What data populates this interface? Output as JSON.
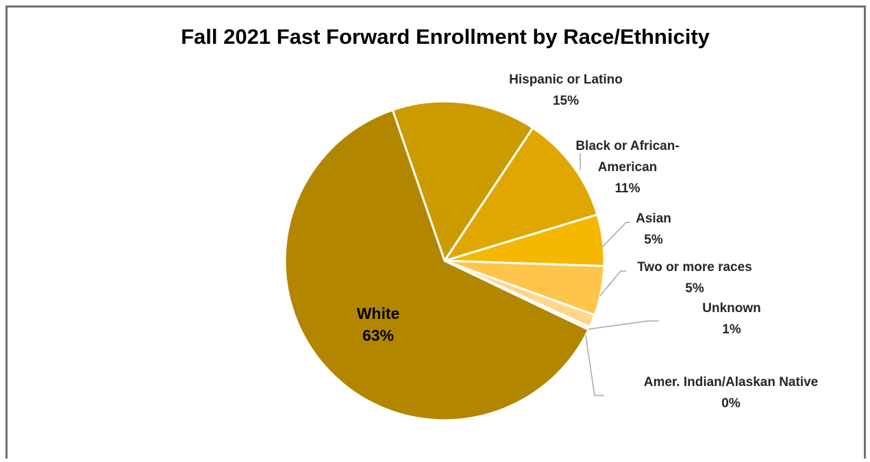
{
  "chart_data": {
    "type": "pie",
    "title": "Fall 2021 Fast Forward Enrollment by Race/Ethnicity",
    "slices": [
      {
        "name": "Hispanic or Latino",
        "label_lines": [
          "Hispanic or Latino"
        ],
        "pct_label": "15%",
        "value": 14.6,
        "color": "#cc9b00"
      },
      {
        "name": "Black or African-American",
        "label_lines": [
          "Black or African-",
          "American"
        ],
        "pct_label": "11%",
        "value": 11.0,
        "color": "#e0a700"
      },
      {
        "name": "Asian",
        "label_lines": [
          "Asian"
        ],
        "pct_label": "5%",
        "value": 5.2,
        "color": "#f5b800"
      },
      {
        "name": "Two or more races",
        "label_lines": [
          "Two or more races"
        ],
        "pct_label": "5%",
        "value": 5.0,
        "color": "#ffc54a"
      },
      {
        "name": "Unknown",
        "label_lines": [
          "Unknown"
        ],
        "pct_label": "1%",
        "value": 1.3,
        "color": "#ffd68a"
      },
      {
        "name": "Amer. Indian/Alaskan Native",
        "label_lines": [
          "Amer. Indian/Alaskan Native"
        ],
        "pct_label": "0%",
        "value": 0.3,
        "color": "#ffe6b3"
      },
      {
        "name": "White",
        "label_lines": [
          "White"
        ],
        "pct_label": "63%",
        "value": 62.6,
        "color": "#b38600"
      }
    ]
  }
}
